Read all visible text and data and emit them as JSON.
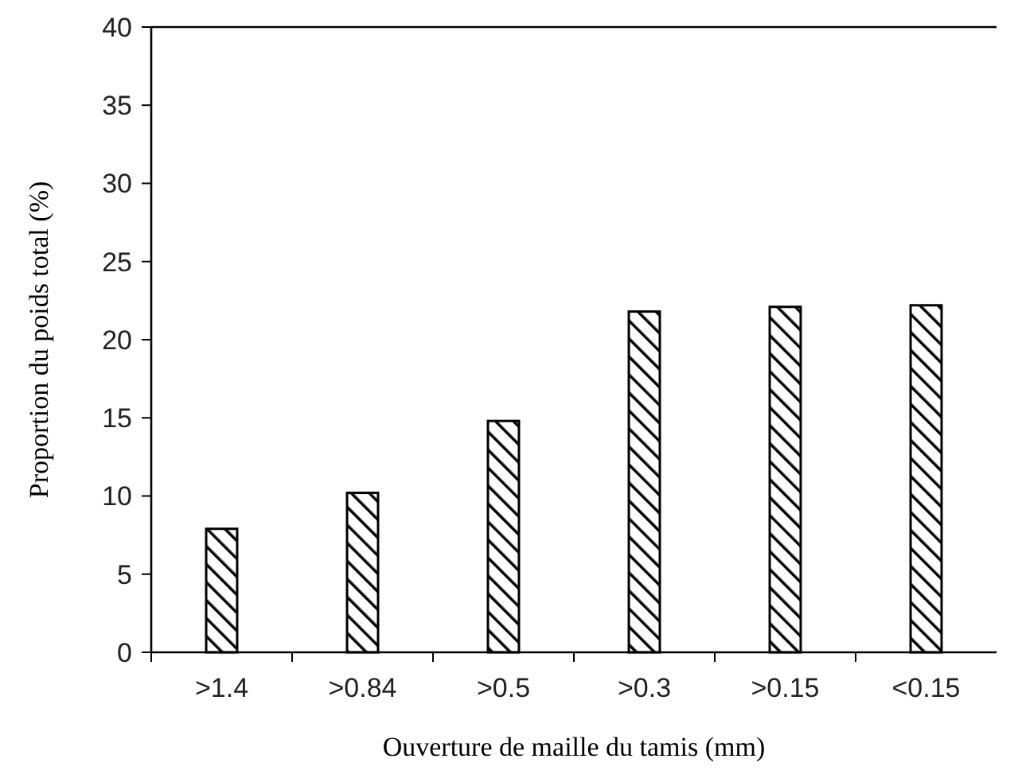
{
  "chart_data": {
    "type": "bar",
    "xlabel": "Ouverture de maille du tamis (mm)",
    "ylabel": "Proportion du poids total (%)",
    "categories": [
      ">1.4",
      ">0.84",
      ">0.5",
      ">0.3",
      ">0.15",
      "<0.15"
    ],
    "values": [
      7.9,
      10.2,
      14.8,
      21.8,
      22.1,
      22.2
    ],
    "color": "#000000",
    "ylim": [
      0,
      40
    ],
    "yticks": [
      0,
      5,
      10,
      15,
      20,
      25,
      30,
      35,
      40
    ],
    "grid": false
  }
}
